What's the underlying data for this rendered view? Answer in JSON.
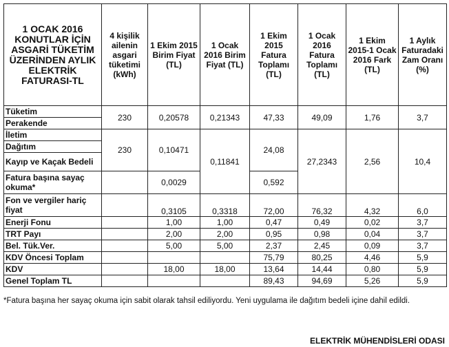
{
  "headers": [
    "1 OCAK 2016 KONUTLAR İÇİN ASGARİ TÜKETİM ÜZERİNDEN AYLIK ELEKTRİK FATURASI-TL",
    "4 kişilik ailenin asgari tüketimi (kWh)",
    "1 Ekim 2015 Birim Fiyat (TL)",
    "1 Ocak 2016 Birim Fiyat (TL)",
    "1 Ekim 2015 Fatura Toplamı (TL)",
    "1 Ocak 2016 Fatura Toplamı (TL)",
    "1 Ekim 2015-1 Ocak 2016 Fark (TL)",
    "1 Aylık Faturadaki Zam Oranı (%)"
  ],
  "labels": {
    "tuketim": "Tüketim",
    "perakende": "Perakende",
    "iletim": "İletim",
    "dagitim": "Dağıtım",
    "kayip": "Kayıp ve Kaçak Bedeli",
    "fatura": "Fatura başına sayaç okuma*",
    "fon": "Fon ve vergiler hariç fiyat",
    "enerji": "Enerji Fonu",
    "trt": "TRT Payı",
    "bel": "Bel. Tük.Ver.",
    "kdvonc": "KDV Öncesi Toplam",
    "kdv": "KDV",
    "genel": "Genel Toplam TL"
  },
  "g1": [
    "230",
    "0,20578",
    "0,21343",
    "47,33",
    "49,09",
    "1,76",
    "3,7"
  ],
  "g2": {
    "kwh": "230",
    "ekim": "0,10471",
    "ocak": "0,11841",
    "ekimTop": "24,08",
    "ocakTop": "27,2343",
    "fark": "2,56",
    "oran": "10,4"
  },
  "fatura": {
    "ekim": "0,0029",
    "ekimTop": "0,592"
  },
  "rows": [
    [
      "",
      "0,3105",
      "0,3318",
      "72,00",
      "76,32",
      "4,32",
      "6,0"
    ],
    [
      "",
      "1,00",
      "1,00",
      "0,47",
      "0,49",
      "0,02",
      "3,7"
    ],
    [
      "",
      "2,00",
      "2,00",
      "0,95",
      "0,98",
      "0,04",
      "3,7"
    ],
    [
      "",
      "5,00",
      "5,00",
      "2,37",
      "2,45",
      "0,09",
      "3,7"
    ],
    [
      "",
      "",
      "",
      "75,79",
      "80,25",
      "4,46",
      "5,9"
    ],
    [
      "",
      "18,00",
      "18,00",
      "13,64",
      "14,44",
      "0,80",
      "5,9"
    ],
    [
      "",
      "",
      "",
      "89,43",
      "94,69",
      "5,26",
      "5,9"
    ]
  ],
  "note": "*Fatura başına her sayaç okuma için sabit olarak tahsil ediliyordu. Yeni uygulama ile dağıtım bedeli içine dahil edildi.",
  "org": "ELEKTRİK MÜHENDİSLERİ ODASI"
}
